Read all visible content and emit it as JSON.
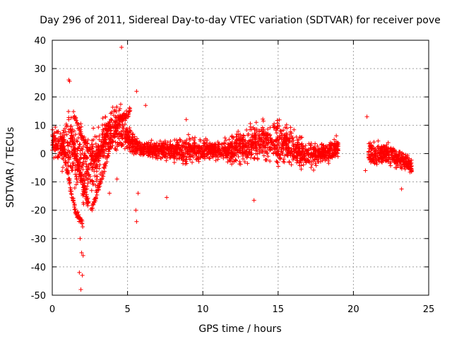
{
  "chart_data": {
    "type": "scatter",
    "title": "Day 296 of 2011, Sidereal Day-to-day VTEC variation (SDTVAR) for receiver pove",
    "xlabel": "GPS time / hours",
    "ylabel": "SDTVAR / TECUs",
    "xlim": [
      0,
      25
    ],
    "ylim": [
      -50,
      40
    ],
    "xticks": [
      0,
      5,
      10,
      15,
      20,
      25
    ],
    "yticks": [
      -50,
      -40,
      -30,
      -20,
      -10,
      0,
      10,
      20,
      30,
      40
    ],
    "grid": true,
    "marker": "+",
    "color": "#ff0000",
    "envelope": [
      [
        0.0,
        -2,
        12
      ],
      [
        0.5,
        -5,
        9
      ],
      [
        1.0,
        -10,
        17
      ],
      [
        1.5,
        -17,
        15
      ],
      [
        2.0,
        -22,
        14
      ],
      [
        2.5,
        -22,
        13
      ],
      [
        3.0,
        -14,
        14
      ],
      [
        3.5,
        -5,
        16
      ],
      [
        4.0,
        -3,
        18
      ],
      [
        4.5,
        -2,
        22
      ],
      [
        5.0,
        -1,
        11
      ],
      [
        6.0,
        -2,
        5
      ],
      [
        7.0,
        -3,
        5
      ],
      [
        8.0,
        -4,
        6
      ],
      [
        9.0,
        -5,
        8
      ],
      [
        10.0,
        -4,
        6
      ],
      [
        11.0,
        -3,
        5
      ],
      [
        12.0,
        -5,
        8
      ],
      [
        13.0,
        -6,
        12
      ],
      [
        14.0,
        -4,
        14
      ],
      [
        15.0,
        -6,
        14
      ],
      [
        15.5,
        -5,
        14
      ],
      [
        16.0,
        -7,
        10
      ],
      [
        17.0,
        -7,
        5
      ],
      [
        18.0,
        -5,
        5
      ],
      [
        19.0,
        -3,
        7
      ],
      [
        21.0,
        -5,
        6
      ],
      [
        22.0,
        -5,
        5
      ],
      [
        23.0,
        -6,
        3
      ],
      [
        23.5,
        -7,
        1
      ],
      [
        23.9,
        -8,
        -2
      ]
    ],
    "streaks": [
      [
        [
          1.2,
          10
        ],
        [
          1.5,
          0
        ],
        [
          2.0,
          -10
        ],
        [
          2.4,
          -18
        ]
      ],
      [
        [
          1.4,
          14
        ],
        [
          2.2,
          4
        ],
        [
          2.8,
          -2
        ],
        [
          3.4,
          2
        ],
        [
          3.8,
          10
        ]
      ],
      [
        [
          2.6,
          -20
        ],
        [
          3.2,
          -10
        ],
        [
          3.8,
          2
        ],
        [
          4.5,
          12
        ],
        [
          5.2,
          15
        ]
      ],
      [
        [
          0.6,
          6
        ],
        [
          1.0,
          -6
        ],
        [
          1.5,
          -20
        ],
        [
          2.0,
          -25
        ]
      ]
    ],
    "outliers": [
      [
        4.6,
        37.5
      ],
      [
        1.1,
        26
      ],
      [
        1.15,
        25.5
      ],
      [
        5.6,
        22
      ],
      [
        6.2,
        17
      ],
      [
        20.9,
        13
      ],
      [
        8.9,
        12
      ],
      [
        13.4,
        -16.5
      ],
      [
        23.2,
        -12.5
      ],
      [
        7.6,
        -15.5
      ],
      [
        20.8,
        -6
      ],
      [
        1.8,
        -42
      ],
      [
        1.9,
        -48
      ],
      [
        2.0,
        -43
      ],
      [
        1.95,
        -35
      ],
      [
        2.05,
        -36
      ],
      [
        1.85,
        -30
      ],
      [
        5.6,
        -24
      ],
      [
        5.55,
        -20
      ],
      [
        5.7,
        -14
      ],
      [
        3.8,
        -14
      ],
      [
        4.3,
        -9
      ]
    ]
  }
}
